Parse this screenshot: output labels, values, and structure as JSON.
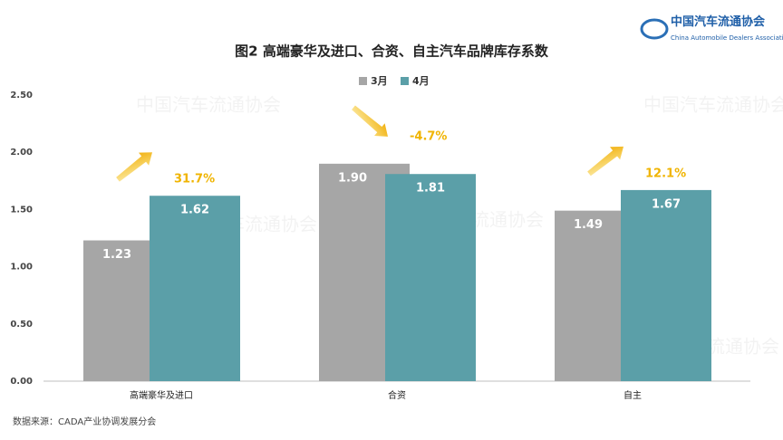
{
  "chart_data": {
    "type": "bar",
    "title": "图2  高端豪华及进口、合资、自主汽车品牌库存系数",
    "categories": [
      "高端豪华及进口",
      "合资",
      "自主"
    ],
    "series": [
      {
        "name": "3月",
        "color": "#a6a6a6",
        "values": [
          1.23,
          1.9,
          1.49
        ],
        "value_labels": [
          "1.23",
          "1.90",
          "1.49"
        ]
      },
      {
        "name": "4月",
        "color": "#5b9fa8",
        "values": [
          1.62,
          1.81,
          1.67
        ],
        "value_labels": [
          "1.62",
          "1.81",
          "1.67"
        ]
      }
    ],
    "annotations": [
      "31.7%",
      "-4.7%",
      "12.1%"
    ],
    "ylim": [
      0,
      2.5
    ],
    "yticks": [
      {
        "value": 0,
        "label": "0.00"
      },
      {
        "value": 0.5,
        "label": "0.50"
      },
      {
        "value": 1,
        "label": "1.00"
      },
      {
        "value": 1.5,
        "label": "1.50"
      },
      {
        "value": 2,
        "label": "2.00"
      },
      {
        "value": 2.5,
        "label": "2.50"
      }
    ],
    "grid": false,
    "source": "数据来源：CADA产业协调发展分会",
    "logo": {
      "name": "中国汽车流通协会",
      "english": "China Automobile Dealers Association"
    }
  }
}
